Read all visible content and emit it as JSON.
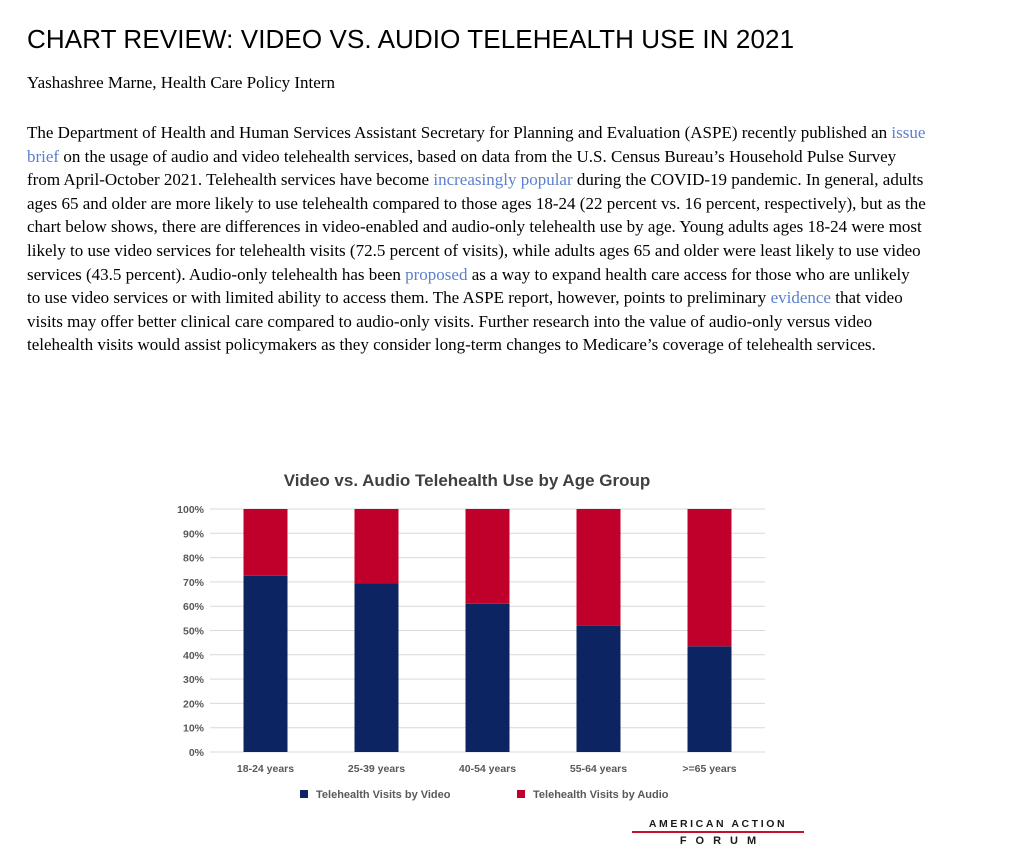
{
  "article": {
    "title": "CHART REVIEW: VIDEO VS. AUDIO TELEHEALTH USE IN 2021",
    "byline": "Yashashree Marne, Health Care Policy Intern",
    "body": [
      "The Department of Health and Human Services Assistant Secretary for Planning and Evaluation (ASPE) recently published an ",
      "issue brief",
      " on the usage of audio and video telehealth services, based on data from the U.S. Census Bureau’s Household Pulse Survey from April-October 2021. Telehealth services have become ",
      "increasingly popular",
      " during the COVID-19 pandemic. In general, adults ages 65 and older are more likely to use telehealth compared to those ages 18-24 (22 percent vs. 16 percent, respectively), but as the chart below shows, there are differences in video-enabled and audio-only telehealth use by age. Young adults ages 18-24 were most likely to use video services for telehealth visits (72.5 percent of visits), while adults ages 65 and older were least likely to use video services (43.5 percent). Audio-only telehealth has been ",
      "proposed",
      " as a way to expand health care access for those who are unlikely to use video services or with limited ability to access them. The ASPE report, however, points to preliminary ",
      "evidence",
      " that video visits may offer better clinical care compared to audio-only visits. Further research into the value of audio-only versus video telehealth visits would assist policymakers as they consider long-term changes to Medicare’s coverage of telehealth services."
    ]
  },
  "colors": {
    "video": "#0c2461",
    "audio": "#c0002a",
    "link": "#5b7fce",
    "grid": "#d9d9d9",
    "axis_text": "#595959",
    "title_text": "#404040"
  },
  "chart_data": {
    "type": "bar",
    "stacked": true,
    "title": "Video vs. Audio Telehealth Use by Age Group",
    "categories": [
      "18-24 years",
      "25-39 years",
      "40-54 years",
      "55-64 years",
      ">=65 years"
    ],
    "series": [
      {
        "name": "Telehealth Visits by Video",
        "values": [
          72.5,
          69.5,
          61,
          52,
          43.5
        ]
      },
      {
        "name": "Telehealth Visits by Audio",
        "values": [
          27.5,
          30.5,
          39,
          48,
          56.5
        ]
      }
    ],
    "ylim": [
      0,
      100
    ],
    "yticks": [
      "0%",
      "10%",
      "20%",
      "30%",
      "40%",
      "50%",
      "60%",
      "70%",
      "80%",
      "90%",
      "100%"
    ],
    "grid": true,
    "legend_position": "bottom"
  },
  "logo": {
    "line1": "AMERICAN ACTION",
    "line2": "FORUM"
  }
}
